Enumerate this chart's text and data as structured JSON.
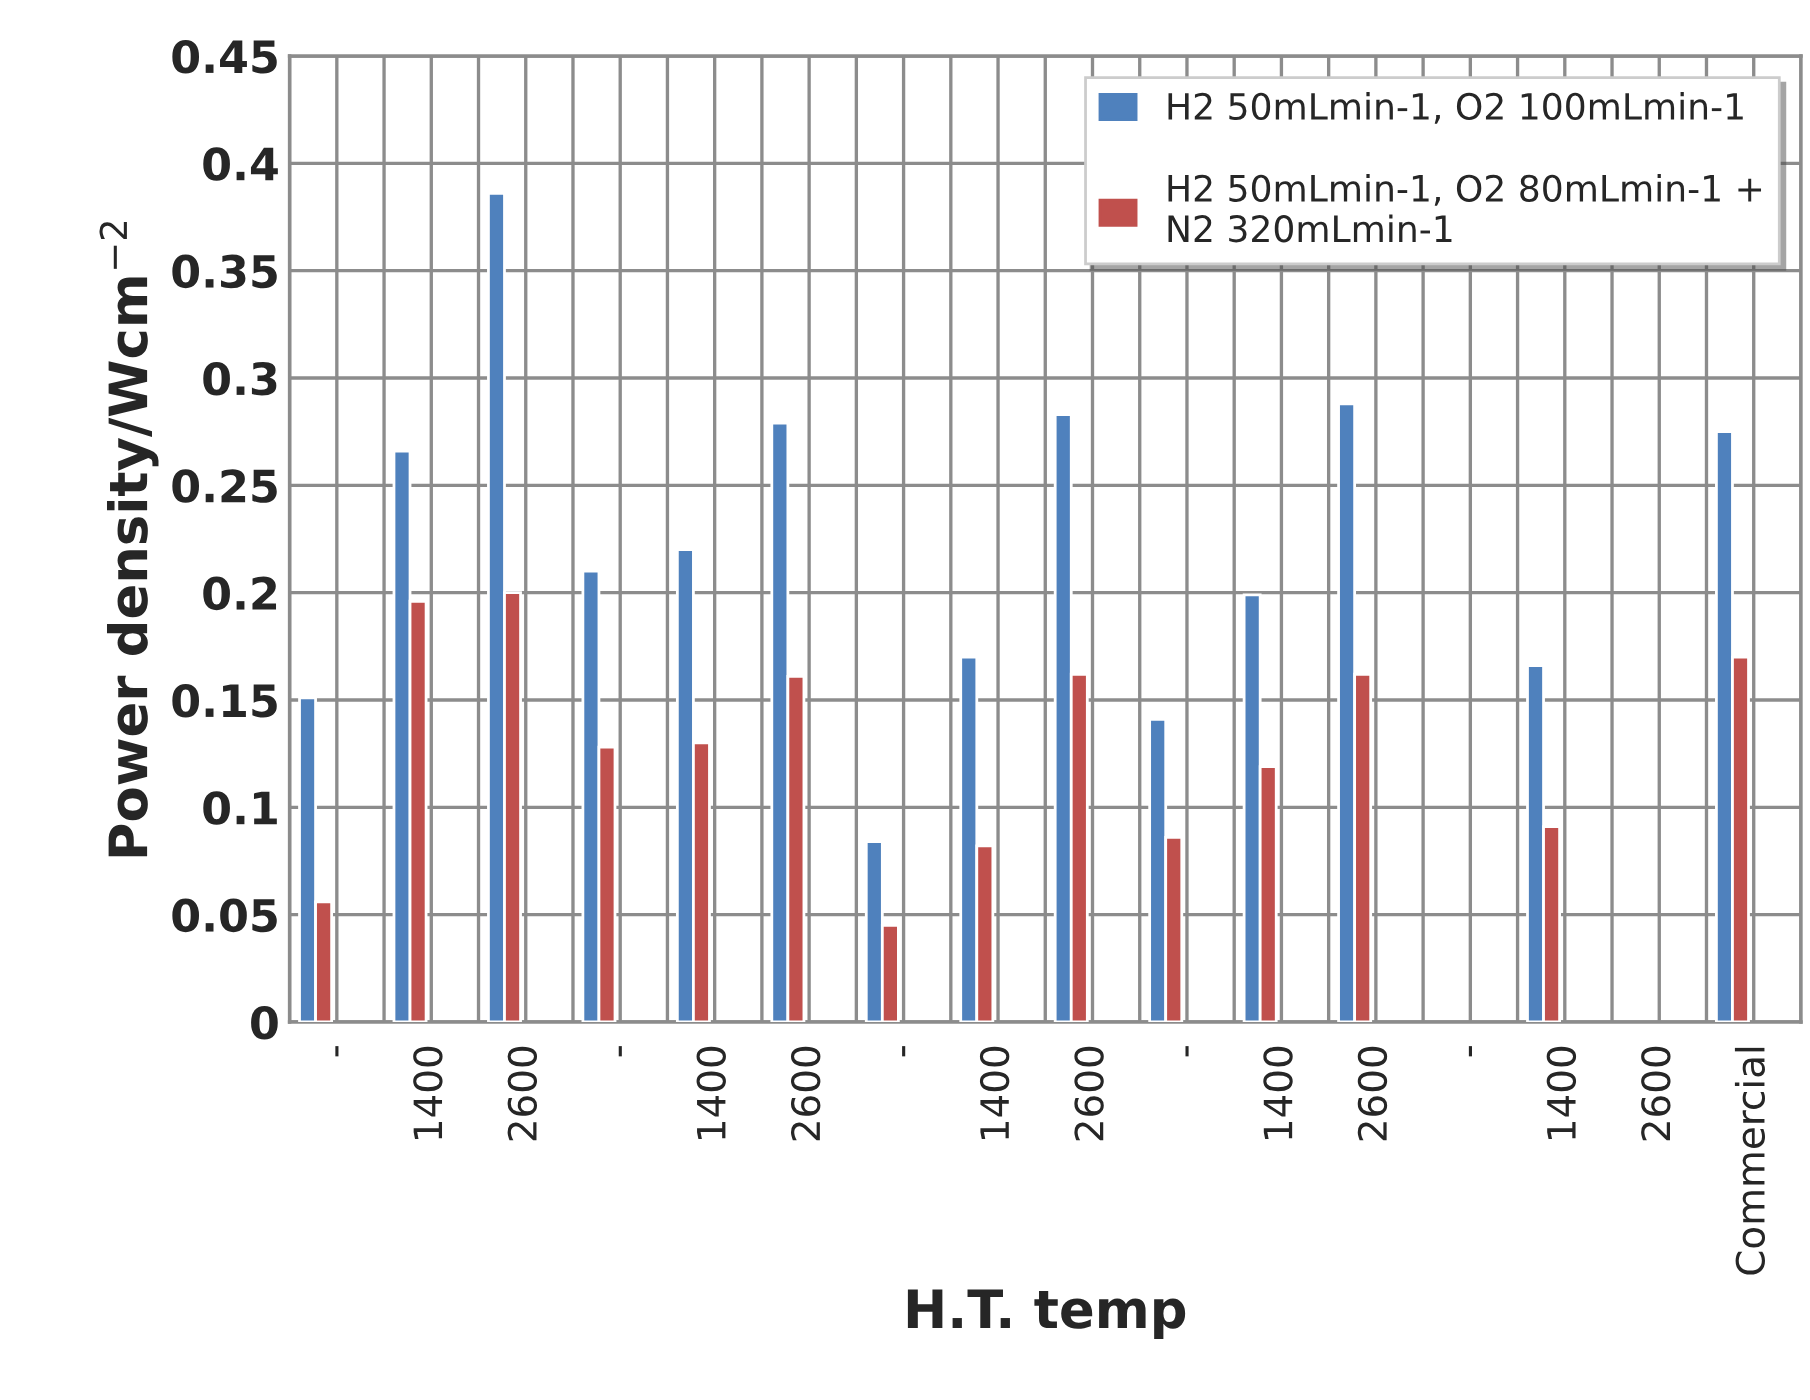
{
  "chart_data": {
    "type": "bar",
    "xlabel": "H.T. temp",
    "ylabel": "Power density/Wcm$^{−2}$",
    "categories": [
      "-",
      "1400",
      "2600",
      "-",
      "1400",
      "2600",
      "-",
      "1400",
      "2600",
      "-",
      "1400",
      "2600",
      "-",
      "1400",
      "2600",
      "Commercial"
    ],
    "series": [
      {
        "name": "H2 50mLmin-1, O2 100mLmin-1",
        "color": "#4f81bd",
        "values": [
          0.151,
          0.266,
          0.386,
          0.21,
          0.22,
          0.279,
          0.084,
          0.17,
          0.283,
          0.141,
          0.199,
          0.288,
          null,
          0.166,
          null,
          0.275
        ]
      },
      {
        "name": "H2 50mLmin-1, O2 80mLmin-1 +\nN2 320mLmin-1",
        "color": "#c0504d",
        "values": [
          0.056,
          0.196,
          0.2,
          0.128,
          0.13,
          0.161,
          0.045,
          0.082,
          0.162,
          0.086,
          0.119,
          0.162,
          null,
          0.091,
          null,
          0.17
        ]
      }
    ],
    "ylim": [
      0,
      0.45
    ],
    "yticks": [
      0,
      0.05,
      0.1,
      0.15,
      0.2,
      0.25,
      0.3,
      0.35,
      0.4,
      0.45
    ],
    "grid": true,
    "legend": "top right"
  }
}
